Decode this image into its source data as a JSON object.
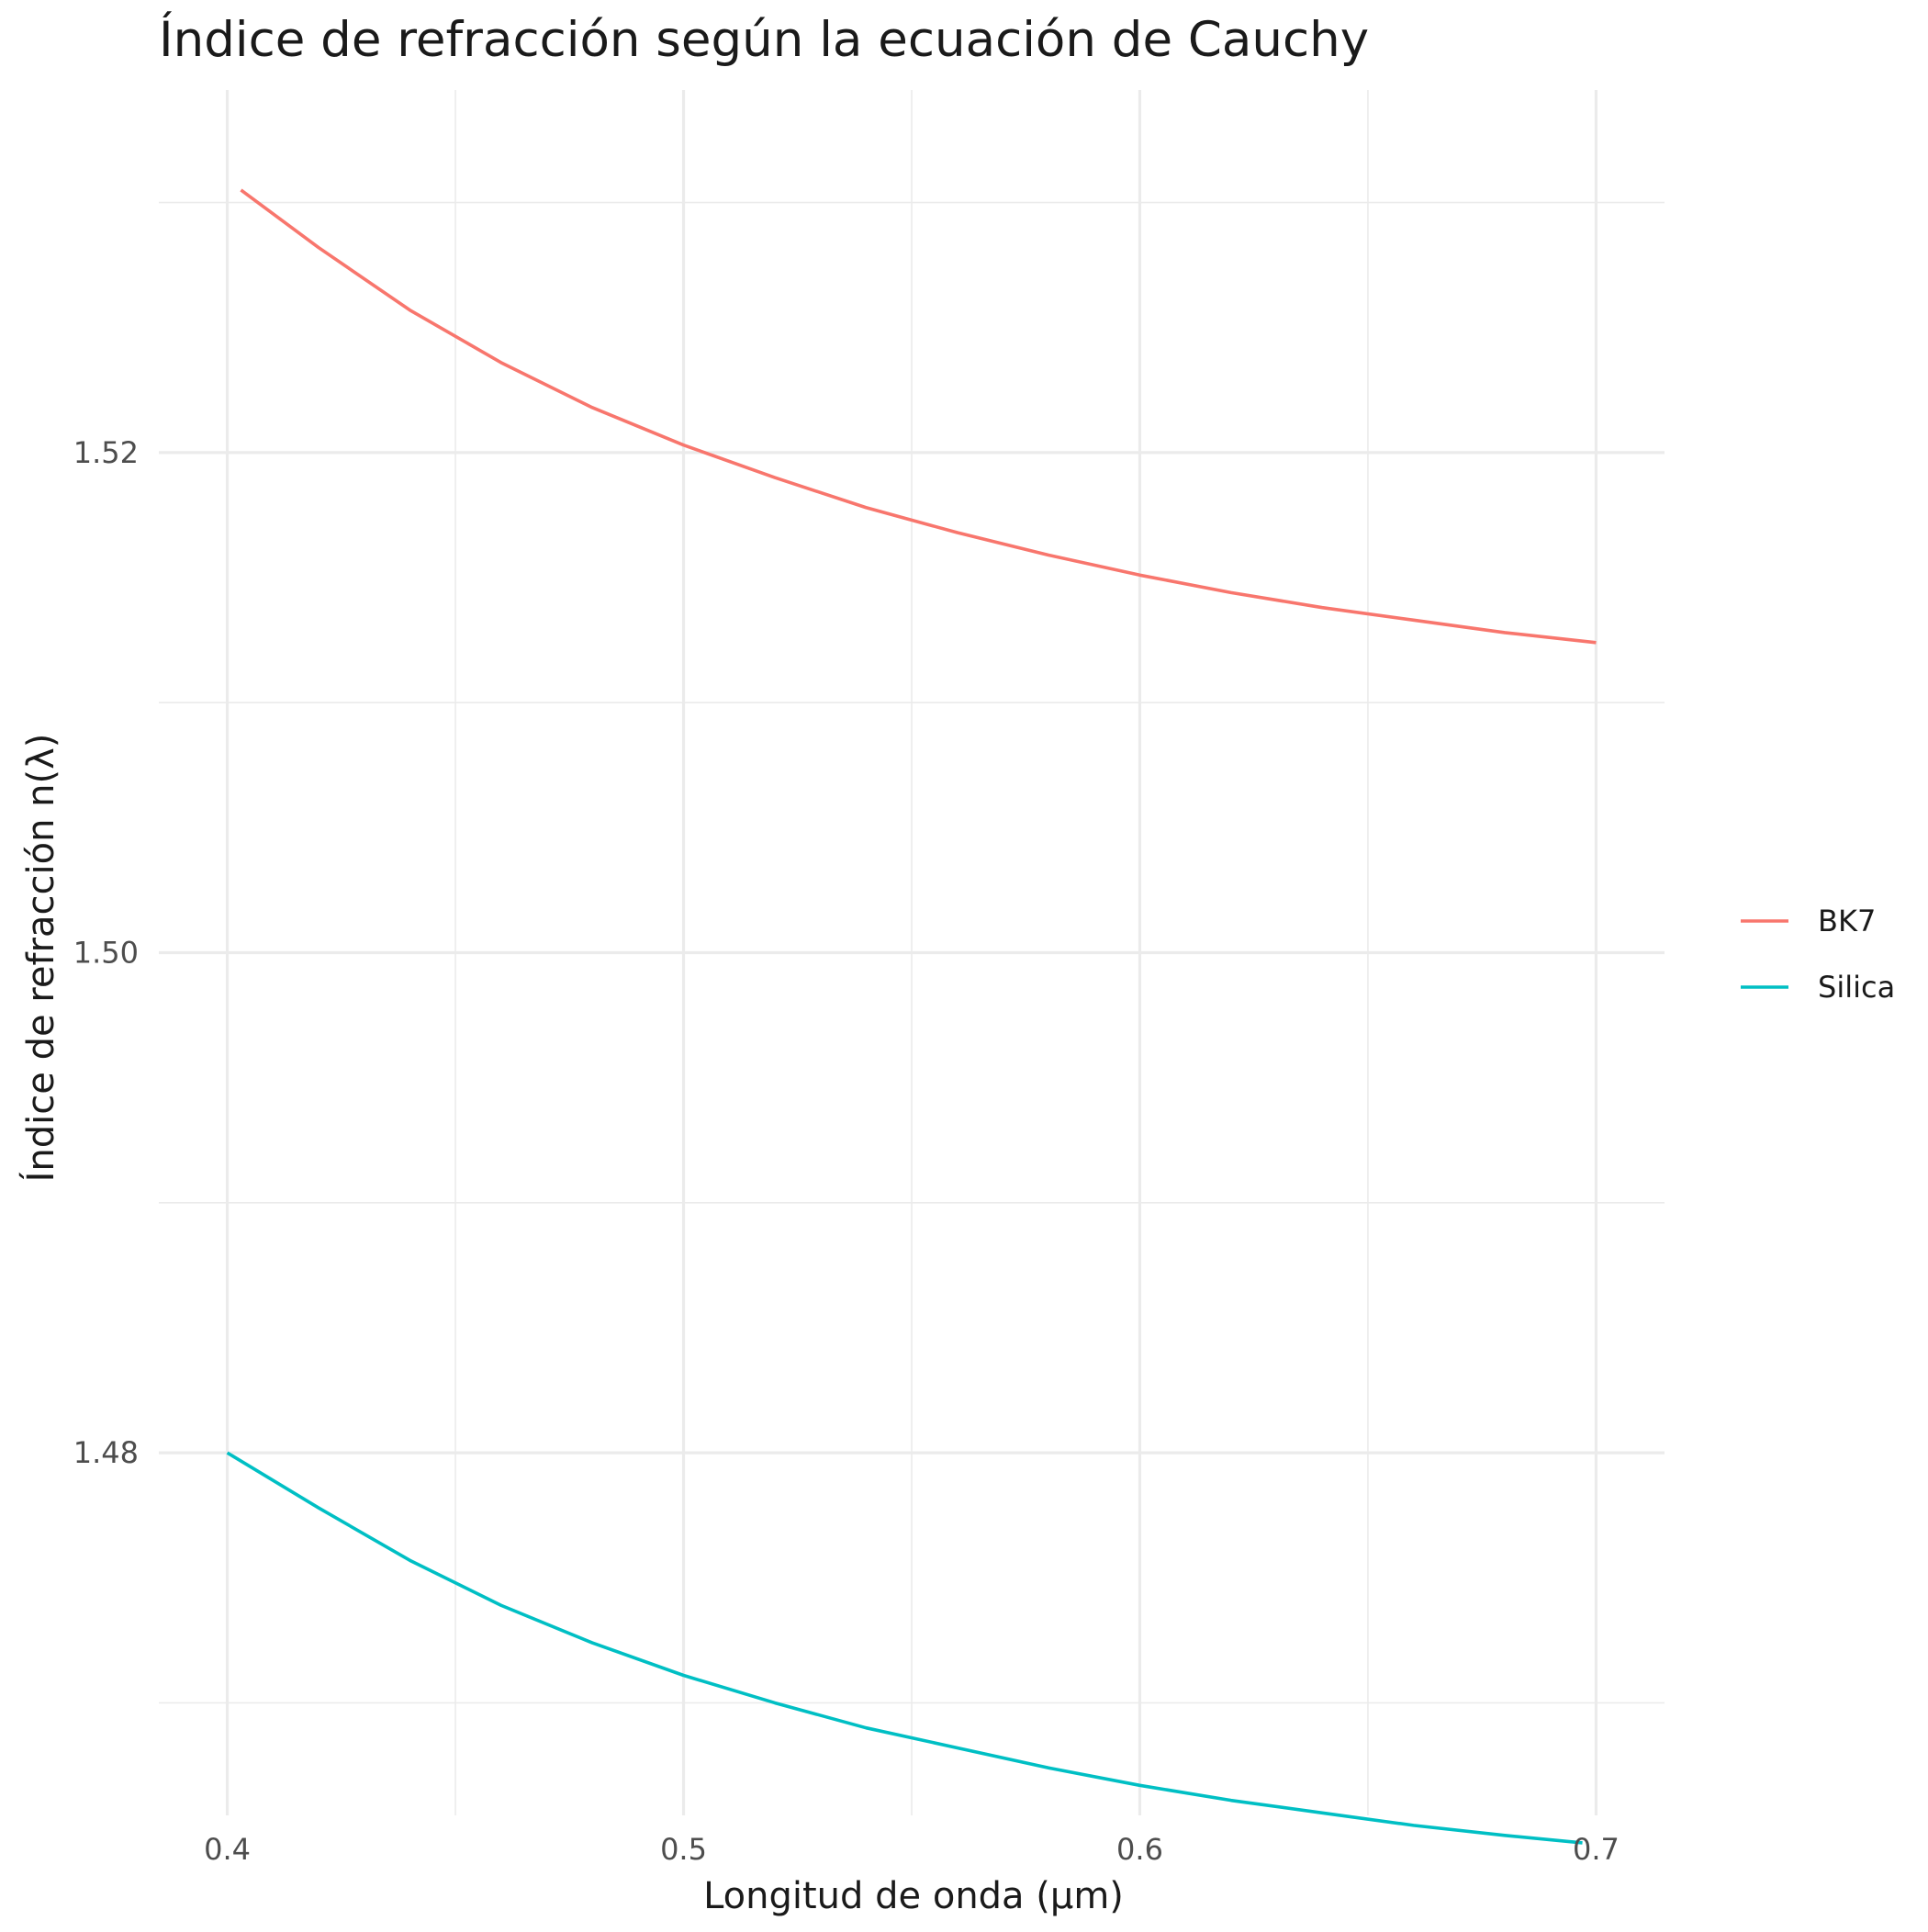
{
  "chart_data": {
    "type": "line",
    "title": "Índice de refracción según la ecuación de Cauchy",
    "xlabel": "Longitud de onda (µm)",
    "ylabel": "Índice de refracción n(λ)",
    "xlim": [
      0.385,
      0.715
    ],
    "ylim": [
      1.4655,
      1.5345
    ],
    "x_ticks": [
      0.4,
      0.5,
      0.6,
      0.7
    ],
    "x_tick_labels": [
      "0.4",
      "0.5",
      "0.6",
      "0.7"
    ],
    "x_minor_ticks": [
      0.45,
      0.55,
      0.65
    ],
    "y_ticks": [
      1.48,
      1.5,
      1.52
    ],
    "y_tick_labels": [
      "1.48",
      "1.50",
      "1.52"
    ],
    "y_minor_ticks": [
      1.47,
      1.49,
      1.51,
      1.53
    ],
    "grid": true,
    "legend_position": "right",
    "series": [
      {
        "name": "BK7",
        "color": "#F8766D",
        "x": [
          0.403,
          0.42,
          0.44,
          0.46,
          0.48,
          0.5,
          0.52,
          0.54,
          0.56,
          0.58,
          0.6,
          0.62,
          0.64,
          0.66,
          0.68,
          0.7
        ],
        "y": [
          1.5305,
          1.5282,
          1.5257,
          1.5236,
          1.5218,
          1.5203,
          1.519,
          1.5178,
          1.5168,
          1.5159,
          1.5151,
          1.5144,
          1.5138,
          1.5133,
          1.5128,
          1.5124
        ]
      },
      {
        "name": "Silica",
        "color": "#00BFC4",
        "x": [
          0.4,
          0.42,
          0.44,
          0.46,
          0.48,
          0.5,
          0.52,
          0.54,
          0.56,
          0.58,
          0.6,
          0.62,
          0.64,
          0.66,
          0.68,
          0.697
        ],
        "y": [
          1.48,
          1.4778,
          1.4757,
          1.4739,
          1.4724,
          1.4711,
          1.47,
          1.469,
          1.4682,
          1.4674,
          1.4667,
          1.4661,
          1.4656,
          1.4651,
          1.4647,
          1.4644
        ]
      }
    ]
  }
}
